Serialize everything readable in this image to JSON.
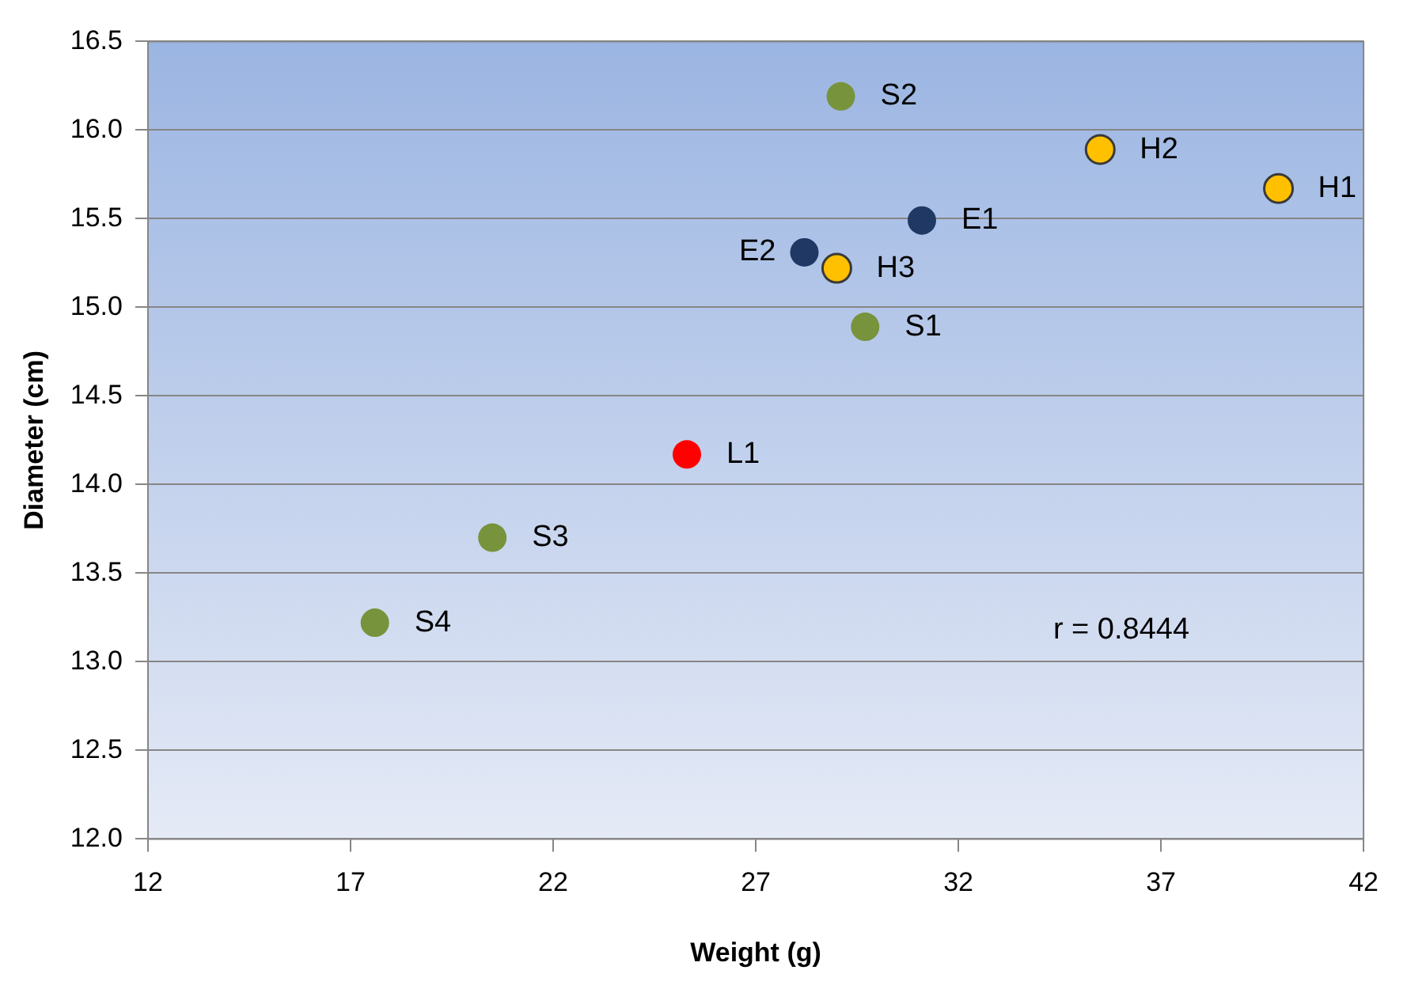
{
  "chart_data": {
    "type": "scatter",
    "xlabel": "Weight (g)",
    "ylabel": "Diameter (cm)",
    "series": [
      {
        "color": "#77933c",
        "x": [
          29.1,
          29.7,
          20.5,
          17.6
        ],
        "values": [
          16.19,
          14.89,
          13.7,
          13.22
        ]
      },
      {
        "color": "#1f3864",
        "x": [
          31.1,
          28.2
        ],
        "values": [
          15.49,
          15.31
        ]
      },
      {
        "color": "#ffc000",
        "x": [
          39.9,
          35.5,
          29.0
        ],
        "values": [
          15.67,
          15.89,
          15.22
        ]
      },
      {
        "color": "#ff0000",
        "x": [
          25.3
        ],
        "values": [
          14.17
        ]
      }
    ],
    "xlim": [
      12,
      42
    ],
    "xticks": [
      12,
      17,
      22,
      27,
      32,
      37,
      42
    ],
    "ylim": [
      12,
      16.5
    ],
    "yticks": [
      {
        "value": 12,
        "label": "12.0"
      },
      12.5,
      {
        "value": 13,
        "label": "13.0"
      },
      13.5,
      {
        "value": 14,
        "label": "14.0"
      },
      14.5,
      {
        "value": 15,
        "label": "15.0"
      },
      15.5,
      {
        "value": 16,
        "label": "16.0"
      },
      16.5
    ],
    "grid": "y",
    "legend": false,
    "marker": "circle",
    "annotations": [
      {
        "text": "S2",
        "x": 29.1,
        "y": 16.19
      },
      {
        "text": "H2",
        "x": 35.5,
        "y": 15.89
      },
      {
        "text": "H1",
        "x": 39.9,
        "y": 15.67
      },
      {
        "text": "E1",
        "x": 31.1,
        "y": 15.49
      },
      {
        "text": "E2",
        "x": 28.2,
        "y": 15.31
      },
      {
        "text": "H3",
        "x": 29.0,
        "y": 15.22
      },
      {
        "text": "S1",
        "x": 29.7,
        "y": 14.89
      },
      {
        "text": "L1",
        "x": 25.3,
        "y": 14.17
      },
      {
        "text": "S3",
        "x": 20.5,
        "y": 13.7
      },
      {
        "text": "S4",
        "x": 17.6,
        "y": 13.22
      },
      "r = 0.8444"
    ]
  }
}
